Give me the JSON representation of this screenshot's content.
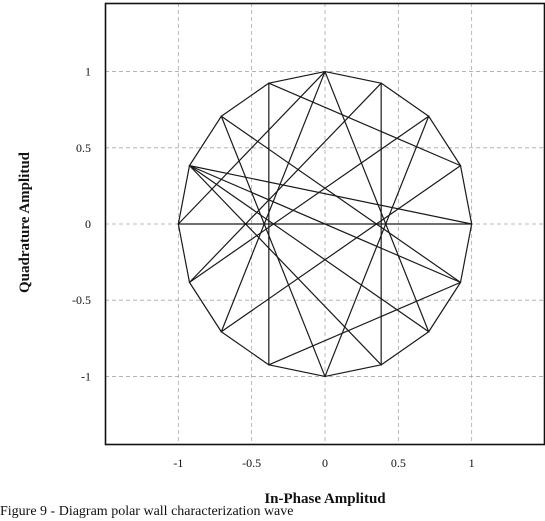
{
  "chart_data": {
    "type": "line",
    "xlabel": "In-Phase Amplitud",
    "ylabel": "Quadrature Amplitud",
    "xlim": [
      -1.5,
      1.5
    ],
    "ylim": [
      -1.45,
      1.45
    ],
    "grid": true,
    "legend": "none",
    "xticks": [
      -1,
      -0.5,
      0,
      0.5,
      1
    ],
    "yticks": [
      -1,
      -0.5,
      0,
      0.5,
      1
    ],
    "xtick_labels": [
      "-1",
      "-0.5",
      "0",
      "0.5",
      "1"
    ],
    "ytick_labels": [
      "-1",
      "-0.5",
      "0",
      "0.5",
      "1"
    ],
    "line_color": "#1a1a1a",
    "grid_color": "#a8a8a8",
    "series": [
      {
        "points": [
          [
            0,
            1
          ],
          [
            -0.383,
            0.924
          ],
          [
            -0.707,
            0.707
          ],
          [
            -0.924,
            0.383
          ],
          [
            -1,
            0
          ],
          [
            -0.924,
            -0.383
          ],
          [
            -0.707,
            -0.707
          ],
          [
            -0.383,
            -0.924
          ],
          [
            0,
            -1
          ],
          [
            0.383,
            -0.924
          ],
          [
            0.707,
            -0.707
          ],
          [
            0.924,
            -0.383
          ],
          [
            1,
            0
          ],
          [
            0.924,
            0.383
          ],
          [
            0.707,
            0.707
          ],
          [
            0.383,
            0.924
          ],
          [
            0,
            1
          ],
          [
            -0.707,
            -0.707
          ],
          [
            0.924,
            0.383
          ],
          [
            -0.383,
            0.924
          ],
          [
            -0.383,
            -0.924
          ],
          [
            0.924,
            -0.383
          ],
          [
            -0.707,
            0.707
          ],
          [
            0,
            -1
          ],
          [
            0.707,
            0.707
          ],
          [
            -0.924,
            -0.383
          ],
          [
            0.383,
            0.924
          ],
          [
            0.383,
            -0.924
          ],
          [
            -0.924,
            0.383
          ],
          [
            0.707,
            -0.707
          ],
          [
            0,
            1
          ],
          [
            -1,
            0
          ],
          [
            1,
            0
          ],
          [
            -0.924,
            0.383
          ],
          [
            0.924,
            -0.383
          ]
        ]
      }
    ]
  },
  "caption": {
    "text": "Figure 9 - Diagram polar wall characterization wave"
  }
}
